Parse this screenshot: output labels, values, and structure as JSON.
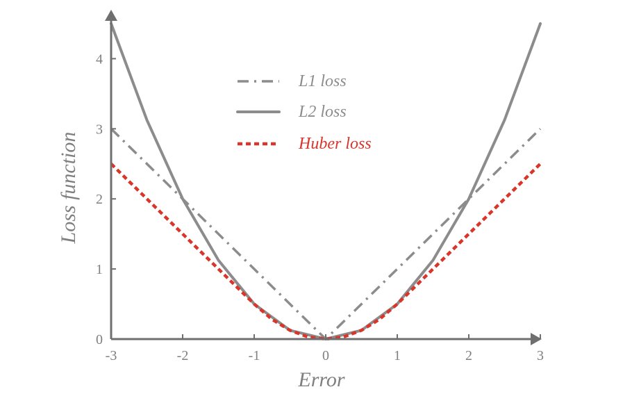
{
  "chart_data": {
    "type": "line",
    "xlabel": "Error",
    "ylabel": "Loss function",
    "xlim": [
      -3,
      3
    ],
    "ylim": [
      0,
      4.5
    ],
    "xticks": [
      -3,
      -2,
      -1,
      0,
      1,
      2,
      3
    ],
    "yticks": [
      0,
      1,
      2,
      3,
      4
    ],
    "legend_position": "top-center",
    "grid": false,
    "colors": {
      "axis": "#6f6f6f",
      "tick_text": "#7f7f7f",
      "l1": "#8c8c8c",
      "l2": "#8c8c8c",
      "huber": "#d9352a"
    },
    "series": [
      {
        "name": "L1 loss",
        "style": "dash-dot",
        "x": [
          -3,
          -2,
          -1,
          -0.1,
          0,
          0.1,
          1,
          2,
          3
        ],
        "y": [
          3,
          2,
          1,
          0.1,
          0,
          0.1,
          1,
          2,
          3
        ]
      },
      {
        "name": "L2 loss",
        "style": "solid",
        "x": [
          -3,
          -2.5,
          -2,
          -1.5,
          -1,
          -0.5,
          0,
          0.5,
          1,
          1.5,
          2,
          2.5,
          3
        ],
        "y": [
          4.5,
          3.125,
          2,
          1.125,
          0.5,
          0.125,
          0,
          0.125,
          0.5,
          1.125,
          2,
          3.125,
          4.5
        ]
      },
      {
        "name": "Huber loss",
        "style": "dotted",
        "x": [
          -3,
          -2.5,
          -2,
          -1.5,
          -1,
          -0.75,
          -0.5,
          -0.25,
          0,
          0.25,
          0.5,
          0.75,
          1,
          1.5,
          2,
          2.5,
          3
        ],
        "y": [
          2.5,
          2,
          1.5,
          1,
          0.5,
          0.28125,
          0.125,
          0.03125,
          0,
          0.03125,
          0.125,
          0.28125,
          0.5,
          1,
          1.5,
          2,
          2.5
        ]
      }
    ]
  }
}
